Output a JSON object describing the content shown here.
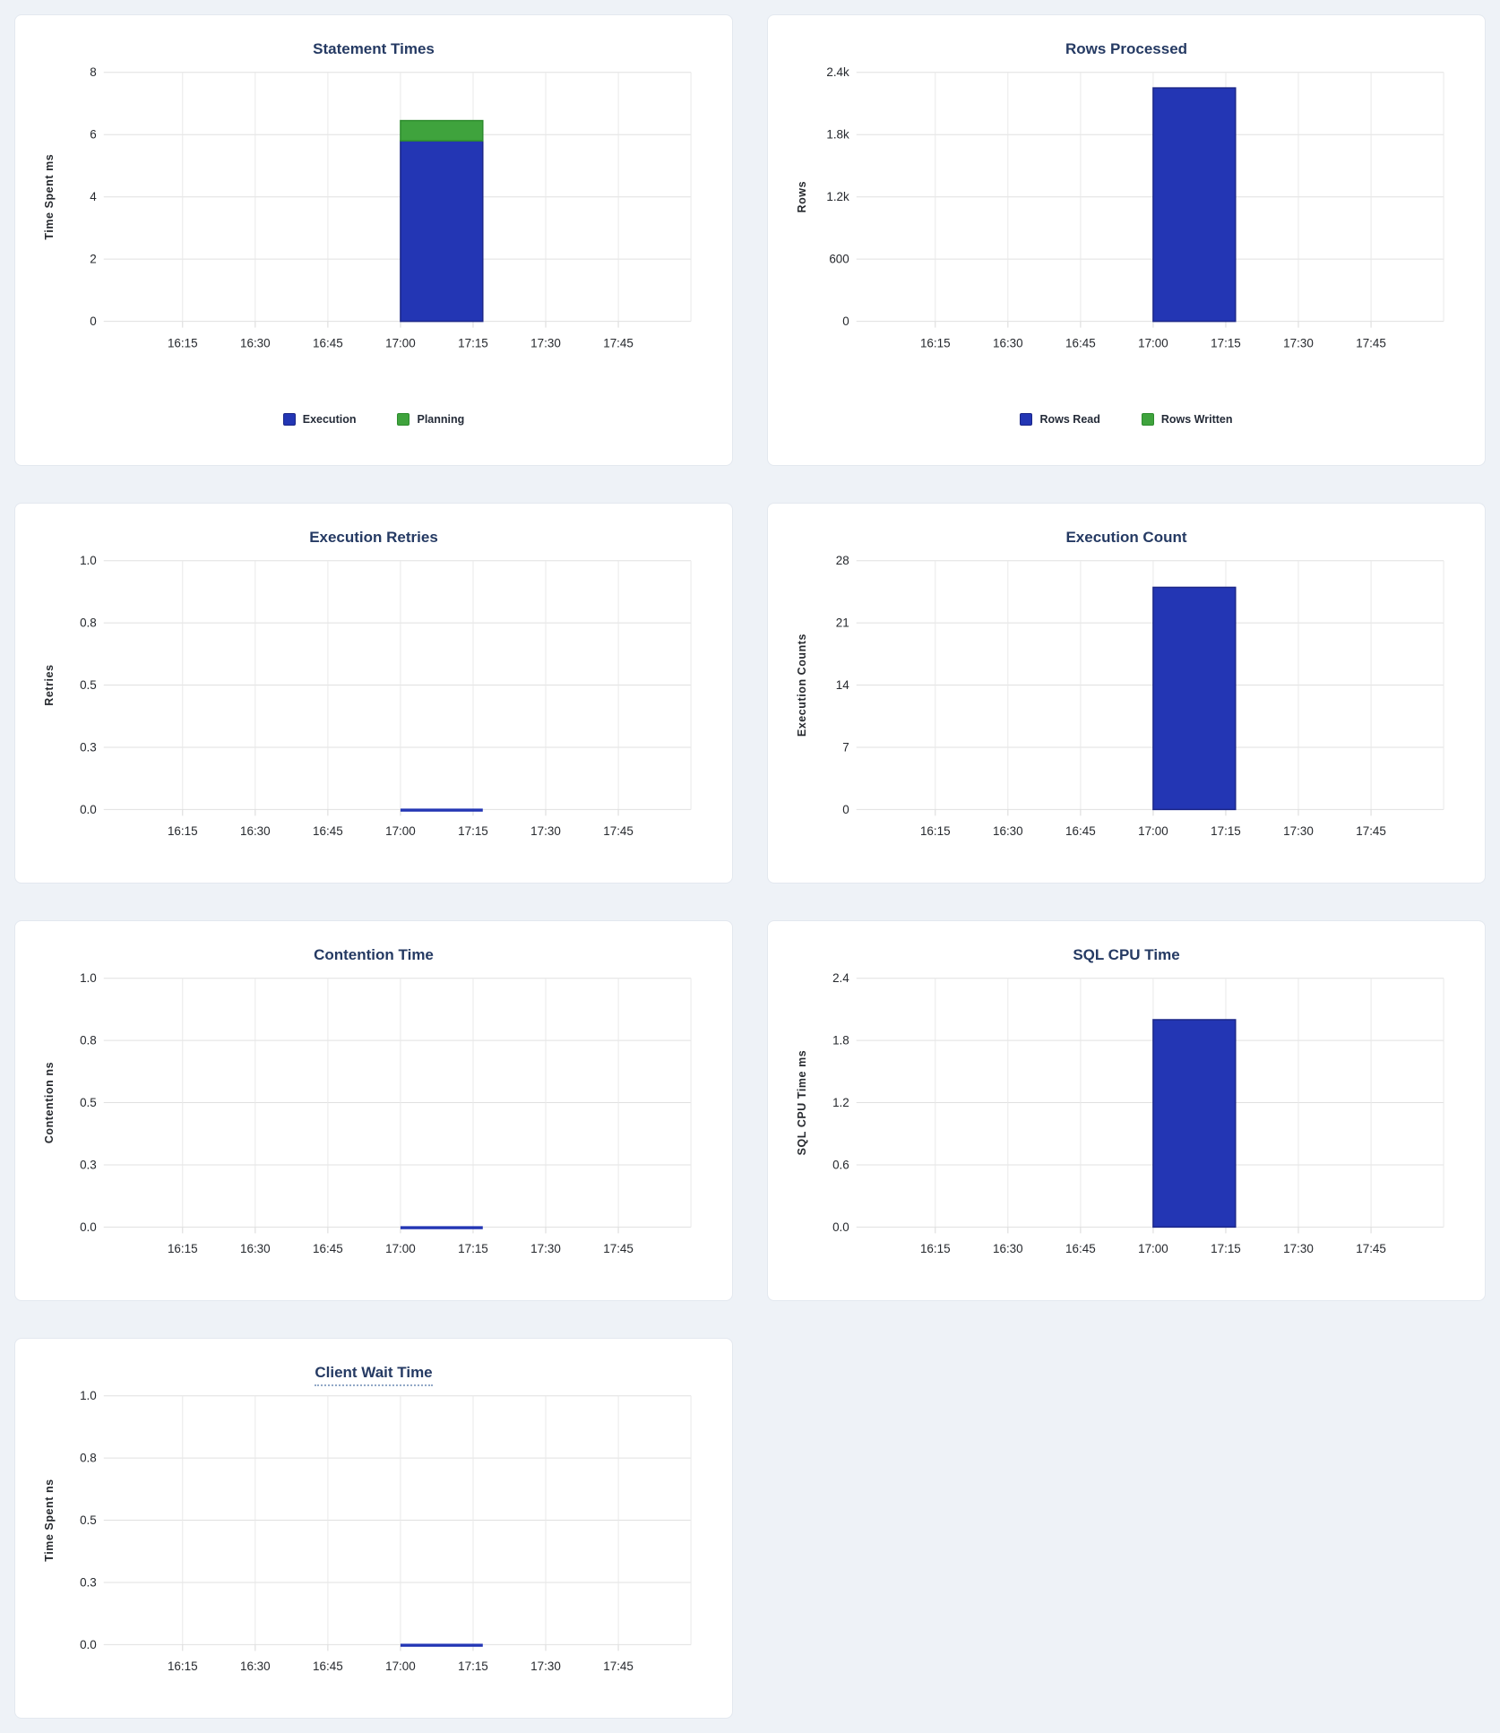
{
  "theme": {
    "page_background": "#eef2f7",
    "card_background": "#ffffff",
    "card_border": "#e3e8ef",
    "title_color": "#253a63",
    "tick_text_color": "#26292e",
    "grid_color": "#e0e0e0",
    "bar_blue": "#2336b4",
    "bar_blue_stroke": "#1b2688",
    "bar_green": "#3fa33d",
    "bar_green_stroke": "#2d8c2d"
  },
  "chart_data": [
    {
      "type": "bar",
      "title": "Statement Times",
      "title_tooltip_underline": false,
      "ylabel": "Time Spent ms",
      "ytick_labels": [
        "0",
        "2",
        "4",
        "6",
        "8"
      ],
      "ylim": [
        0,
        8
      ],
      "xtick_labels": [
        "16:15",
        "16:30",
        "16:45",
        "17:00",
        "17:15",
        "17:30",
        "17:45"
      ],
      "xtick_minutes": [
        15,
        30,
        45,
        60,
        75,
        90,
        105
      ],
      "xlim_minutes": [
        0,
        120
      ],
      "x_range_shown": "16:00 - 18:00",
      "grid": true,
      "legend_visible": true,
      "legend_position": "bottom-center",
      "series": [
        {
          "name": "Execution",
          "color": "#2336b4",
          "stroke": "#1b2688"
        },
        {
          "name": "Planning",
          "color": "#3fa33d",
          "stroke": "#2d8c2d"
        }
      ],
      "bars": [
        {
          "x_start_min": 60,
          "x_end_min": 77,
          "x_label": "17:00-17:17",
          "values": [
            5.8,
            0.65
          ]
        }
      ]
    },
    {
      "type": "bar",
      "title": "Rows Processed",
      "title_tooltip_underline": false,
      "ylabel": "Rows",
      "ytick_labels": [
        "0",
        "600",
        "1.2k",
        "1.8k",
        "2.4k"
      ],
      "ylim": [
        0,
        2400
      ],
      "xtick_labels": [
        "16:15",
        "16:30",
        "16:45",
        "17:00",
        "17:15",
        "17:30",
        "17:45"
      ],
      "xtick_minutes": [
        15,
        30,
        45,
        60,
        75,
        90,
        105
      ],
      "xlim_minutes": [
        0,
        120
      ],
      "x_range_shown": "16:00 - 18:00",
      "grid": true,
      "legend_visible": true,
      "legend_position": "bottom-center",
      "series": [
        {
          "name": "Rows Read",
          "color": "#2336b4",
          "stroke": "#1b2688"
        },
        {
          "name": "Rows Written",
          "color": "#3fa33d",
          "stroke": "#2d8c2d"
        }
      ],
      "bars": [
        {
          "x_start_min": 60,
          "x_end_min": 77,
          "x_label": "17:00-17:17",
          "values": [
            2250,
            0
          ]
        }
      ]
    },
    {
      "type": "bar",
      "title": "Execution Retries",
      "title_tooltip_underline": false,
      "ylabel": "Retries",
      "ytick_labels": [
        "0.0",
        "0.3",
        "0.5",
        "0.8",
        "1.0"
      ],
      "ylim": [
        0,
        1
      ],
      "xtick_labels": [
        "16:15",
        "16:30",
        "16:45",
        "17:00",
        "17:15",
        "17:30",
        "17:45"
      ],
      "xtick_minutes": [
        15,
        30,
        45,
        60,
        75,
        90,
        105
      ],
      "xlim_minutes": [
        0,
        120
      ],
      "x_range_shown": "16:00 - 18:00",
      "grid": true,
      "legend_visible": false,
      "series": [
        {
          "name": "Retries",
          "color": "#2336b4",
          "stroke": "#1b2688"
        }
      ],
      "bars": [
        {
          "x_start_min": 60,
          "x_end_min": 77,
          "x_label": "17:00-17:17",
          "values": [
            0
          ]
        }
      ]
    },
    {
      "type": "bar",
      "title": "Execution Count",
      "title_tooltip_underline": false,
      "ylabel": "Execution Counts",
      "ytick_labels": [
        "0",
        "7",
        "14",
        "21",
        "28"
      ],
      "ylim": [
        0,
        28
      ],
      "xtick_labels": [
        "16:15",
        "16:30",
        "16:45",
        "17:00",
        "17:15",
        "17:30",
        "17:45"
      ],
      "xtick_minutes": [
        15,
        30,
        45,
        60,
        75,
        90,
        105
      ],
      "xlim_minutes": [
        0,
        120
      ],
      "x_range_shown": "16:00 - 18:00",
      "grid": true,
      "legend_visible": false,
      "series": [
        {
          "name": "Execution Count",
          "color": "#2336b4",
          "stroke": "#1b2688"
        }
      ],
      "bars": [
        {
          "x_start_min": 60,
          "x_end_min": 77,
          "x_label": "17:00-17:17",
          "values": [
            25
          ]
        }
      ]
    },
    {
      "type": "bar",
      "title": "Contention Time",
      "title_tooltip_underline": false,
      "ylabel": "Contention ns",
      "ytick_labels": [
        "0.0",
        "0.3",
        "0.5",
        "0.8",
        "1.0"
      ],
      "ylim": [
        0,
        1
      ],
      "xtick_labels": [
        "16:15",
        "16:30",
        "16:45",
        "17:00",
        "17:15",
        "17:30",
        "17:45"
      ],
      "xtick_minutes": [
        15,
        30,
        45,
        60,
        75,
        90,
        105
      ],
      "xlim_minutes": [
        0,
        120
      ],
      "x_range_shown": "16:00 - 18:00",
      "grid": true,
      "legend_visible": false,
      "series": [
        {
          "name": "Contention",
          "color": "#2336b4",
          "stroke": "#1b2688"
        }
      ],
      "bars": [
        {
          "x_start_min": 60,
          "x_end_min": 77,
          "x_label": "17:00-17:17",
          "values": [
            0
          ]
        }
      ]
    },
    {
      "type": "bar",
      "title": "SQL CPU Time",
      "title_tooltip_underline": false,
      "ylabel": "SQL CPU Time ms",
      "ytick_labels": [
        "0.0",
        "0.6",
        "1.2",
        "1.8",
        "2.4"
      ],
      "ylim": [
        0,
        2.4
      ],
      "xtick_labels": [
        "16:15",
        "16:30",
        "16:45",
        "17:00",
        "17:15",
        "17:30",
        "17:45"
      ],
      "xtick_minutes": [
        15,
        30,
        45,
        60,
        75,
        90,
        105
      ],
      "xlim_minutes": [
        0,
        120
      ],
      "x_range_shown": "16:00 - 18:00",
      "grid": true,
      "legend_visible": false,
      "series": [
        {
          "name": "SQL CPU Time",
          "color": "#2336b4",
          "stroke": "#1b2688"
        }
      ],
      "bars": [
        {
          "x_start_min": 60,
          "x_end_min": 77,
          "x_label": "17:00-17:17",
          "values": [
            2.0
          ]
        }
      ]
    },
    {
      "type": "bar",
      "title": "Client Wait Time",
      "title_tooltip_underline": true,
      "ylabel": "Time Spent ns",
      "ytick_labels": [
        "0.0",
        "0.3",
        "0.5",
        "0.8",
        "1.0"
      ],
      "ylim": [
        0,
        1
      ],
      "xtick_labels": [
        "16:15",
        "16:30",
        "16:45",
        "17:00",
        "17:15",
        "17:30",
        "17:45"
      ],
      "xtick_minutes": [
        15,
        30,
        45,
        60,
        75,
        90,
        105
      ],
      "xlim_minutes": [
        0,
        120
      ],
      "x_range_shown": "16:00 - 18:00",
      "grid": true,
      "legend_visible": false,
      "series": [
        {
          "name": "Client Wait",
          "color": "#2336b4",
          "stroke": "#1b2688"
        }
      ],
      "bars": [
        {
          "x_start_min": 60,
          "x_end_min": 77,
          "x_label": "17:00-17:17",
          "values": [
            0
          ]
        }
      ]
    }
  ]
}
